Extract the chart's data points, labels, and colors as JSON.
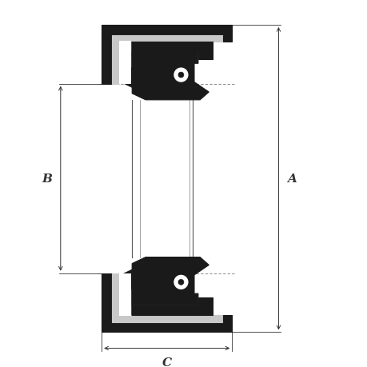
{
  "bg_color": "#ffffff",
  "fill_black": "#1a1a1a",
  "fill_gray": "#c8c8c8",
  "fill_white": "#ffffff",
  "dim_color": "#333333",
  "label_A": "A",
  "label_B": "B",
  "label_C": "C",
  "fig_width": 4.6,
  "fig_height": 4.6,
  "dpi": 100
}
